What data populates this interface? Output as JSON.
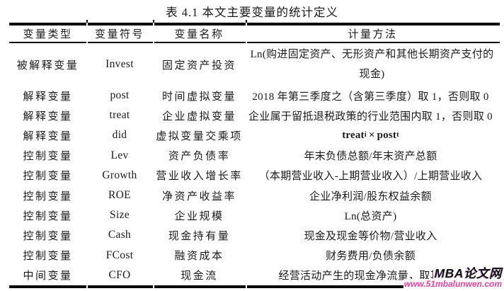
{
  "title": "表 4.1  本文主要变量的统计定义",
  "table": {
    "headers": [
      "变量类型",
      "变量符号",
      "变量名称",
      "计量方法"
    ],
    "rows": [
      {
        "type": "被解释变量",
        "symbol": "Invest",
        "name": "固定资产投资",
        "method": "Ln(购进固定资产、无形资产和其他长期资产支付的现金)"
      },
      {
        "type": "解释变量",
        "symbol": "post",
        "name": "时间虚拟变量",
        "method": "2018 年第三季度之（含第三季度）取 1，否则取 0"
      },
      {
        "type": "解释变量",
        "symbol": "treat",
        "name": "企业虚拟变量",
        "method": "企业属于留抵退税政策的行业范围内取 1，否则取 0"
      },
      {
        "type": "解释变量",
        "symbol": "did",
        "name": "虚拟变量交乘项",
        "formula": {
          "base1": "treat",
          "sub1": "i",
          "operator": "×",
          "base2": "post",
          "sub2": "t"
        }
      },
      {
        "type": "控制变量",
        "symbol": "Lev",
        "name": "资产负债率",
        "method": "年末负债总额/年末资产总额"
      },
      {
        "type": "控制变量",
        "symbol": "Growth",
        "name": "营业收入增长率",
        "method": "（本期营业收入-上期营业收入）/上期营业收入"
      },
      {
        "type": "控制变量",
        "symbol": "ROE",
        "name": "净资产收益率",
        "method": "企业净利润/股东权益余额"
      },
      {
        "type": "控制变量",
        "symbol": "Size",
        "name": "企业规模",
        "method": "Ln(总资产)"
      },
      {
        "type": "控制变量",
        "symbol": "Cash",
        "name": "现金持有量",
        "method": "现金及现金等价物/营业收入"
      },
      {
        "type": "控制变量",
        "symbol": "FCost",
        "name": "融资成本",
        "method": "财务费用/负债余额"
      },
      {
        "type": "中间变量",
        "symbol": "CFO",
        "name": "现金流",
        "method": "经营活动产生的现金净流量，取其自然"
      }
    ]
  },
  "watermark": {
    "brand": "MBA论文网",
    "url": "www.51mbalunwen.com",
    "url_color": "#e8419b"
  }
}
